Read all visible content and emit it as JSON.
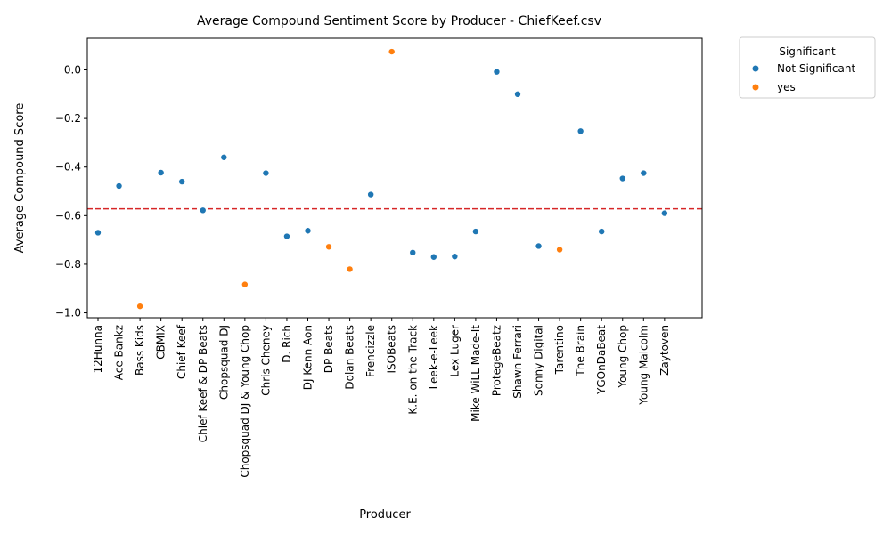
{
  "chart_data": {
    "type": "scatter",
    "title": "Average Compound Sentiment Score by Producer - ChiefKeef.csv",
    "xlabel": "Producer",
    "ylabel": "Average Compound Score",
    "ylim": [
      -1.02,
      0.13
    ],
    "yticks": [
      0.0,
      -0.2,
      -0.4,
      -0.6,
      -0.8,
      -1.0
    ],
    "ytick_labels": [
      "0.0",
      "−0.2",
      "−0.4",
      "−0.6",
      "−0.8",
      "−1.0"
    ],
    "reference_line": {
      "y": -0.572,
      "color": "#d62728",
      "style": "dashed"
    },
    "grid": false,
    "legend": {
      "title": "Significant",
      "placement": "outside-top-right",
      "entries": [
        {
          "label": "Not Significant",
          "color": "#1f77b4"
        },
        {
          "label": "yes",
          "color": "#ff7f0e"
        }
      ]
    },
    "categories": [
      "12Hunna",
      "Ace Bankz",
      "Bass Kids",
      "CBMIX",
      "Chief Keef",
      "Chief Keef & DP Beats",
      "Chopsquad DJ",
      "Chopsquad DJ & Young Chop",
      "Chris Cheney",
      "D. Rich",
      "DJ Kenn Aon",
      "DP Beats",
      "Dolan Beats",
      "Frencizzle",
      "ISOBeats",
      "K.E. on the Track",
      "Leek-e-Leek",
      "Lex Luger",
      "Mike WiLL Made-It",
      "ProtegeBeatz",
      "Shawn Ferrari",
      "Sonny Digital",
      "Tarentino",
      "The Brain",
      "YGOnDaBeat",
      "Young Chop",
      "Young Malcolm",
      "Zaytoven"
    ],
    "values": [
      -0.67,
      -0.478,
      -0.973,
      -0.423,
      -0.46,
      -0.578,
      -0.36,
      -0.883,
      -0.425,
      -0.685,
      -0.662,
      -0.728,
      -0.82,
      -0.513,
      0.075,
      -0.752,
      -0.77,
      -0.768,
      -0.665,
      -0.008,
      -0.1,
      -0.725,
      -0.74,
      -0.252,
      -0.665,
      -0.447,
      -0.425,
      -0.59
    ],
    "significant": [
      "Not Significant",
      "Not Significant",
      "yes",
      "Not Significant",
      "Not Significant",
      "Not Significant",
      "Not Significant",
      "yes",
      "Not Significant",
      "Not Significant",
      "Not Significant",
      "yes",
      "yes",
      "Not Significant",
      "yes",
      "Not Significant",
      "Not Significant",
      "Not Significant",
      "Not Significant",
      "Not Significant",
      "Not Significant",
      "Not Significant",
      "yes",
      "Not Significant",
      "Not Significant",
      "Not Significant",
      "Not Significant",
      "Not Significant"
    ]
  }
}
